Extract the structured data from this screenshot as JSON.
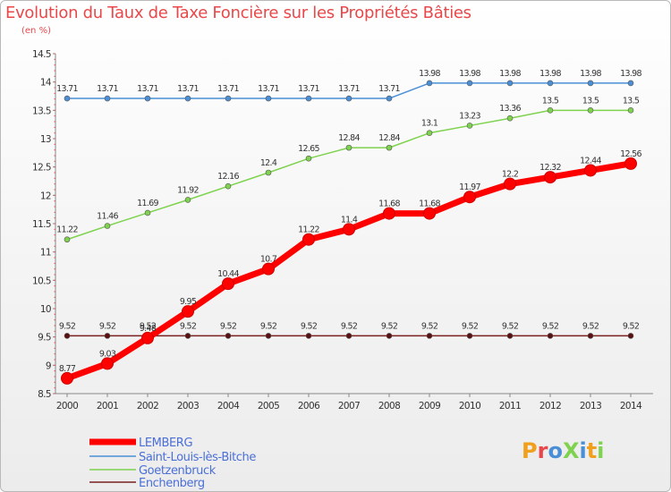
{
  "title": "Evolution du Taux de Taxe Foncière sur les Propriétés Bâties",
  "unit": "(en %)",
  "logo": {
    "text": "ProXiti"
  },
  "chart_data": {
    "type": "line",
    "title": "Evolution du Taux de Taxe Foncière sur les Propriétés Bâties",
    "ylabel": "(en %)",
    "xlabel": "",
    "x": [
      "2000",
      "2001",
      "2002",
      "2003",
      "2004",
      "2005",
      "2006",
      "2007",
      "2008",
      "2009",
      "2010",
      "2011",
      "2012",
      "2013",
      "2014"
    ],
    "ylim": [
      8.5,
      14.5
    ],
    "yticks": [
      "8.5",
      "9",
      "9.5",
      "10",
      "10.5",
      "11",
      "11.5",
      "12",
      "12.5",
      "13",
      "13.5",
      "14",
      "14.5"
    ],
    "grid": false,
    "legend_position": "bottom-left",
    "series": [
      {
        "name": "LEMBERG",
        "color": "#ff0000",
        "values": [
          8.77,
          9.03,
          9.48,
          9.95,
          10.44,
          10.7,
          11.22,
          11.4,
          11.68,
          11.68,
          11.97,
          12.2,
          12.32,
          12.44,
          12.56
        ],
        "labels": [
          "8.77",
          "9.03",
          "9.48",
          "9.95",
          "10.44",
          "10.7",
          "11.22",
          "11.4",
          "11.68",
          "11.68",
          "11.97",
          "12.2",
          "12.32",
          "12.44",
          "12.56"
        ]
      },
      {
        "name": "Saint-Louis-lès-Bitche",
        "color": "#4a8fd6",
        "values": [
          13.71,
          13.71,
          13.71,
          13.71,
          13.71,
          13.71,
          13.71,
          13.71,
          13.71,
          13.98,
          13.98,
          13.98,
          13.98,
          13.98,
          13.98
        ],
        "labels": [
          "13.71",
          "13.71",
          "13.71",
          "13.71",
          "13.71",
          "13.71",
          "13.71",
          "13.71",
          "13.71",
          "13.98",
          "13.98",
          "13.98",
          "13.98",
          "13.98",
          "13.98"
        ]
      },
      {
        "name": "Goetzenbruck",
        "color": "#7ed24e",
        "values": [
          11.22,
          11.46,
          11.69,
          11.92,
          12.16,
          12.4,
          12.65,
          12.84,
          12.84,
          13.1,
          13.23,
          13.36,
          13.5,
          13.5,
          13.5
        ],
        "labels": [
          "11.22",
          "11.46",
          "11.69",
          "11.92",
          "12.16",
          "12.4",
          "12.65",
          "12.84",
          "12.84",
          "13.1",
          "13.23",
          "13.36",
          "13.5",
          "13.5",
          "13.5"
        ]
      },
      {
        "name": "Enchenberg",
        "color": "#7a2020",
        "values": [
          9.52,
          9.52,
          9.52,
          9.52,
          9.52,
          9.52,
          9.52,
          9.52,
          9.52,
          9.52,
          9.52,
          9.52,
          9.52,
          9.52,
          9.52
        ],
        "labels": [
          "9.52",
          "9.52",
          "9.52",
          "9.52",
          "9.52",
          "9.52",
          "9.52",
          "9.52",
          "9.52",
          "9.52",
          "9.52",
          "9.52",
          "9.52",
          "9.52",
          "9.52"
        ]
      }
    ]
  }
}
